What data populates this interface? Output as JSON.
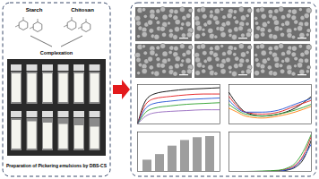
{
  "left_panel": {
    "starch_label": "Starch",
    "chitosan_label": "Chitosan",
    "arrow_label": "Complexation",
    "caption": "Preparation of Pickering emulsions by DBS-CS"
  },
  "chart_data": [
    {
      "type": "line",
      "x": [
        0,
        1,
        2,
        4,
        6,
        8,
        10
      ],
      "xlim": [
        0,
        10
      ],
      "ylim": [
        0,
        50
      ],
      "tick_labels": false,
      "series": [
        {
          "color": "#000000",
          "values": [
            0,
            30,
            38,
            42,
            44,
            45,
            46
          ]
        },
        {
          "color": "#e31a1c",
          "values": [
            0,
            25,
            32,
            35,
            37,
            38,
            38
          ]
        },
        {
          "color": "#1f4fd1",
          "values": [
            0,
            20,
            26,
            29,
            31,
            32,
            33
          ]
        },
        {
          "color": "#2ca02c",
          "values": [
            0,
            15,
            20,
            23,
            25,
            26,
            27
          ]
        },
        {
          "color": "#9467bd",
          "values": [
            0,
            10,
            14,
            16,
            17,
            18,
            18
          ]
        }
      ]
    },
    {
      "type": "line",
      "x": [
        0,
        1,
        2,
        4,
        6,
        8,
        10
      ],
      "xlim": [
        0,
        10
      ],
      "ylim": [
        0,
        10
      ],
      "tick_labels": false,
      "series": [
        {
          "color": "#000000",
          "values": [
            8,
            5,
            3,
            2,
            2.5,
            4,
            7
          ]
        },
        {
          "color": "#e31a1c",
          "values": [
            7,
            4.5,
            3,
            2.5,
            3,
            4.5,
            6
          ]
        },
        {
          "color": "#1f4fd1",
          "values": [
            6,
            4,
            3,
            3,
            3.5,
            5,
            6.5
          ]
        },
        {
          "color": "#2ca02c",
          "values": [
            5,
            3.5,
            2.5,
            2,
            2.5,
            3.5,
            5
          ]
        },
        {
          "color": "#ff7f0e",
          "values": [
            4,
            3,
            2,
            1.5,
            2,
            3,
            4.5
          ]
        }
      ]
    },
    {
      "type": "bar",
      "categories": [
        null,
        null,
        null,
        null,
        null,
        null
      ],
      "values": [
        20,
        30,
        45,
        55,
        60,
        62
      ],
      "color": "#9e9e9e",
      "ylim": [
        0,
        70
      ],
      "tick_labels": false
    },
    {
      "type": "line",
      "x": [
        0,
        2,
        4,
        6,
        7,
        8,
        9,
        10
      ],
      "xlim": [
        0,
        10
      ],
      "ylim": [
        0,
        10
      ],
      "tick_labels": false,
      "series": [
        {
          "color": "#000000",
          "values": [
            0,
            0,
            0,
            0,
            0.3,
            1,
            3,
            8
          ]
        },
        {
          "color": "#e31a1c",
          "values": [
            0,
            0,
            0,
            0.2,
            0.6,
            1.5,
            4,
            9
          ]
        },
        {
          "color": "#1f4fd1",
          "values": [
            0,
            0,
            0,
            0.1,
            0.4,
            1.2,
            3.5,
            7
          ]
        },
        {
          "color": "#2ca02c",
          "values": [
            0,
            0,
            0.1,
            0.3,
            0.8,
            2,
            5,
            9.5
          ]
        }
      ]
    }
  ]
}
